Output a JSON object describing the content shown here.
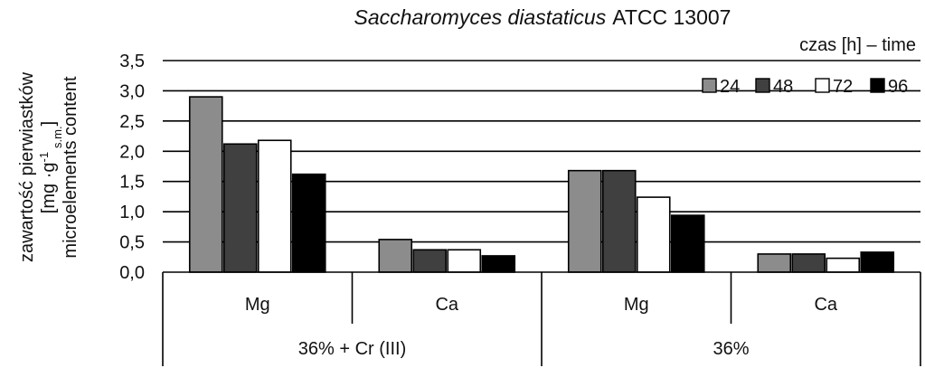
{
  "chart_data": {
    "type": "bar",
    "title_italic": "Saccharomyces diastaticus",
    "title_rest": "ATCC  13007",
    "ylabel_lines": [
      "zawartość pierwiastków",
      "[mg ·g",
      "-1",
      "s.m.",
      "]",
      "microelements content"
    ],
    "legend_title": "czas [h] – time",
    "legend_position": "top-right",
    "ylim": [
      0,
      3.5
    ],
    "yticks": [
      "0,0",
      "0,5",
      "1,0",
      "1,5",
      "2,0",
      "2,5",
      "3,0",
      "3,5"
    ],
    "ytick_values": [
      0,
      0.5,
      1.0,
      1.5,
      2.0,
      2.5,
      3.0,
      3.5
    ],
    "grid": true,
    "categories": [
      "Mg",
      "Ca",
      "Mg",
      "Ca"
    ],
    "groups": [
      {
        "label": "36% + Cr (III)",
        "span": [
          0,
          1
        ]
      },
      {
        "label": "36%",
        "span": [
          2,
          3
        ]
      }
    ],
    "series": [
      {
        "name": "24",
        "color": "#8c8c8c",
        "values": [
          2.9,
          0.54,
          1.68,
          0.3
        ]
      },
      {
        "name": "48",
        "color": "#404040",
        "values": [
          2.12,
          0.37,
          1.68,
          0.3
        ]
      },
      {
        "name": "72",
        "color": "#ffffff",
        "values": [
          2.18,
          0.37,
          1.24,
          0.23
        ]
      },
      {
        "name": "96",
        "color": "#000000",
        "values": [
          1.62,
          0.27,
          0.94,
          0.33
        ]
      }
    ]
  }
}
